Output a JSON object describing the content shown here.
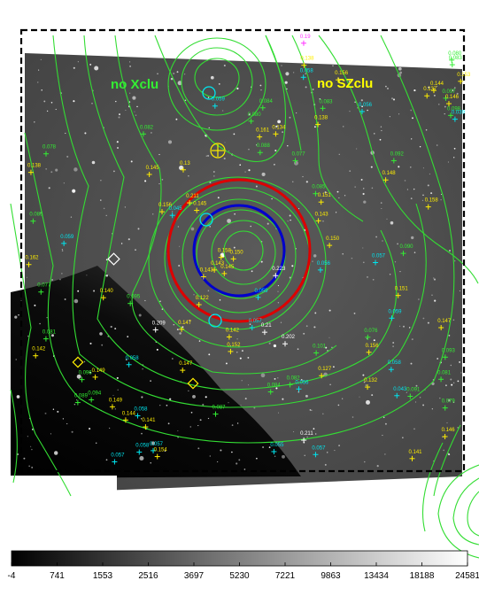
{
  "labels": {
    "no_xclu": "no Xclu",
    "no_szclu": "no SZclu"
  },
  "colorbar": {
    "ticks": [
      "-4",
      "741",
      "1553",
      "2516",
      "3697",
      "5230",
      "7221",
      "9863",
      "13434",
      "18188",
      "24581"
    ]
  },
  "colors": {
    "contour": "#33dd33",
    "xray_circle": "#dd0000",
    "sz_circle": "#0000cc",
    "cyan_marks": "#00e5ee",
    "yellow_marks": "#ffee00",
    "magenta_marks": "#ff33ff",
    "white_marks": "#ffffff",
    "label_green": "#33ee33",
    "label_yellow": "#ffff00"
  },
  "redshift_labels": {
    "yellow": [
      "0.13",
      "0.143",
      "0.142",
      "0.145",
      "0.141",
      "0.143",
      "0.145",
      "0.138",
      "0.146",
      "0.147",
      "0.145",
      "0.143",
      "0.144",
      "0.149",
      "0.142",
      "0.147",
      "0.151",
      "0.150",
      "0.156",
      "0.162",
      "0.137",
      "0.158",
      "0.148",
      "0.127",
      "0.151",
      "0.144",
      "0.132",
      "0.153",
      "0.154",
      "0.156",
      "0.138",
      "0.147",
      "0.134",
      "0.211",
      "0.122",
      "0.149",
      "0.156",
      "0.152",
      "0.150",
      "0.140",
      "0.138",
      "0.141",
      "0.161",
      "0.146",
      "0.158"
    ],
    "green": [
      "0.081",
      "0.077",
      "0.094",
      "0.092",
      "0.089",
      "0.091",
      "0.080",
      "0.095",
      "0.082",
      "0.077",
      "0.093",
      "0.081",
      "0.078",
      "0.084",
      "0.083",
      "0.087",
      "0.076",
      "0.079",
      "0.085",
      "0.090",
      "0.088",
      "0.086",
      "0.083",
      "0.096",
      "0.101",
      "0.098",
      "0.097",
      "0.084",
      "0.082",
      "0.080"
    ],
    "cyan": [
      "0.057",
      "0.058",
      "0.056",
      "0.057",
      "0.059",
      "0.058",
      "0.055",
      "0.058",
      "0.056",
      "0.059",
      "0.057",
      "0.058",
      "0.039",
      "0.043",
      "0.045",
      "0.059",
      "0.057",
      "0.058",
      "0.056",
      "0.059",
      "0.057"
    ],
    "white": [
      "0.21",
      "0.209",
      "0.202",
      "0.211",
      "0.223"
    ],
    "magenta": [
      "0.19"
    ]
  }
}
